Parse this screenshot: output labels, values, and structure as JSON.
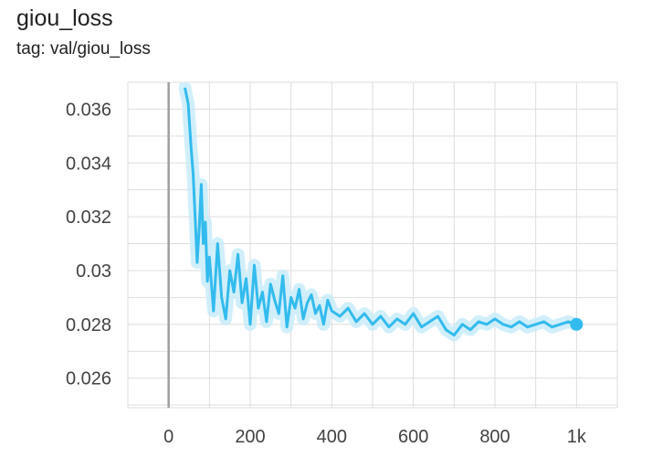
{
  "title": "giou_loss",
  "tag": "tag: val/giou_loss",
  "colors": {
    "line": "#33bbee",
    "line_raw": "#c6ebfa",
    "grid": "#dddddd",
    "zero": "#9e9e9e"
  },
  "chart_data": {
    "type": "line",
    "title": "giou_loss",
    "xlabel": "",
    "ylabel": "",
    "xlim": [
      -100,
      1100
    ],
    "ylim": [
      0.0249,
      0.037
    ],
    "x_ticks": [
      0,
      200,
      400,
      600,
      800,
      1000
    ],
    "x_tick_labels": [
      "0",
      "200",
      "400",
      "600",
      "800",
      "1k"
    ],
    "y_ticks": [
      0.026,
      0.028,
      0.03,
      0.032,
      0.034,
      0.036
    ],
    "y_tick_labels": [
      "0.026",
      "0.028",
      "0.03",
      "0.032",
      "0.034",
      "0.036"
    ],
    "grid": true,
    "series": [
      {
        "x": [
          40,
          48,
          55,
          60,
          65,
          70,
          75,
          80,
          85,
          90,
          95,
          100,
          110,
          120,
          130,
          140,
          150,
          160,
          170,
          180,
          190,
          200,
          210,
          220,
          230,
          240,
          250,
          260,
          270,
          280,
          290,
          300,
          310,
          320,
          330,
          340,
          350,
          360,
          370,
          380,
          390,
          400,
          420,
          440,
          460,
          480,
          500,
          520,
          540,
          560,
          580,
          600,
          620,
          640,
          660,
          680,
          700,
          720,
          740,
          760,
          780,
          800,
          820,
          840,
          860,
          880,
          900,
          920,
          940,
          960,
          980,
          1000
        ],
        "y": [
          0.0368,
          0.0362,
          0.0346,
          0.0336,
          0.032,
          0.0303,
          0.0316,
          0.0332,
          0.031,
          0.0318,
          0.0296,
          0.0305,
          0.0285,
          0.031,
          0.029,
          0.0282,
          0.03,
          0.0292,
          0.0306,
          0.0288,
          0.0297,
          0.028,
          0.0302,
          0.0286,
          0.0292,
          0.0281,
          0.0295,
          0.0289,
          0.0284,
          0.0298,
          0.0279,
          0.029,
          0.0286,
          0.0293,
          0.0282,
          0.0288,
          0.0291,
          0.0284,
          0.0287,
          0.028,
          0.0289,
          0.0285,
          0.0283,
          0.0286,
          0.0281,
          0.0284,
          0.028,
          0.0283,
          0.0279,
          0.0282,
          0.028,
          0.0284,
          0.0279,
          0.0281,
          0.0283,
          0.0278,
          0.0276,
          0.028,
          0.0278,
          0.0281,
          0.028,
          0.0282,
          0.028,
          0.0279,
          0.0281,
          0.0279,
          0.028,
          0.0281,
          0.0279,
          0.028,
          0.0281,
          0.028
        ]
      }
    ]
  }
}
